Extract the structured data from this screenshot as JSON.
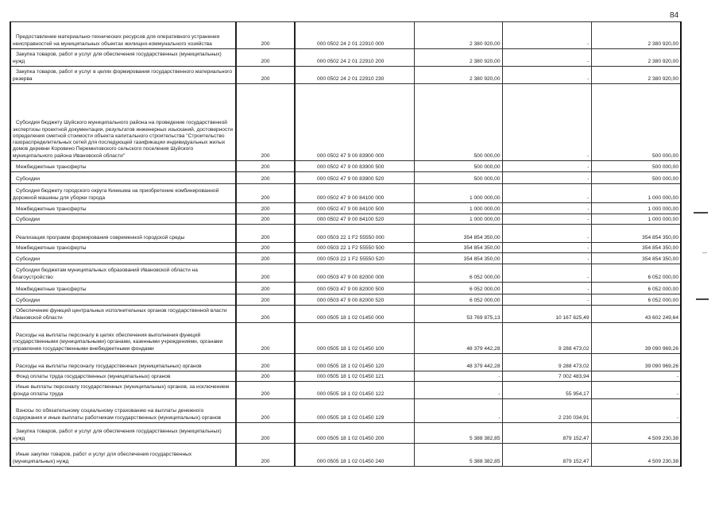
{
  "page_number": "84",
  "rows": [
    {
      "name": "Предоставление материально-технических ресурсов для оперативного устранения неисправностей на муниципальных объектах жилищно-коммунального хозяйства",
      "code": "200",
      "kbk": "000 0502 24 2 01 22910 000",
      "approved": "2 380 920,00",
      "executed": "-",
      "unexecuted": "2 380 920,00"
    },
    {
      "name": "Закупка товаров, работ и услуг для обеспечения государственных (муниципальных) нужд",
      "code": "200",
      "kbk": "000 0502 24 2 01 22910 200",
      "approved": "2 380 920,00",
      "executed": "-",
      "unexecuted": "2 380 920,00"
    },
    {
      "name": "Закупка товаров, работ и услуг в целях формирования государственного материального резерва",
      "code": "200",
      "kbk": "000 0502 24 2 01 22910 230",
      "approved": "2 380 920,00",
      "executed": "-",
      "unexecuted": "2 380 920,00"
    },
    {
      "name": "Субсидия бюджету Шуйского муниципального района на проведение государственной экспертизы проектной документации, результатов инженерных изысканий, достоверности определения сметной стоимости объекта капитального строительства \"Строительство газораспределительных сетей для последующей газификации индивидуальных жилых домов деревни Коровино Перемиловского сельского поселения Шуйского муниципального района Ивановской области\"",
      "code": "200",
      "kbk": "000 0502 47 9 00 83900 000",
      "approved": "500 000,00",
      "executed": "-",
      "unexecuted": "500 000,00"
    },
    {
      "name": "Межбюджетные трансферты",
      "code": "200",
      "kbk": "000 0502 47 9 00 83900 500",
      "approved": "500 000,00",
      "executed": "-",
      "unexecuted": "500 000,00"
    },
    {
      "name": "Субсидии",
      "code": "200",
      "kbk": "000 0502 47 9 00 83900 520",
      "approved": "500 000,00",
      "executed": "-",
      "unexecuted": "500 000,00"
    },
    {
      "name": "Субсидия бюджету городского округа Кинешма на приобретение комбинированной дорожной машины для уборки города",
      "code": "200",
      "kbk": "000 0502 47 9 00 84100 000",
      "approved": "1 000 000,00",
      "executed": "-",
      "unexecuted": "1 000 000,00"
    },
    {
      "name": "Межбюджетные трансферты",
      "code": "200",
      "kbk": "000 0502 47 9 00 84100 500",
      "approved": "1 000 000,00",
      "executed": "-",
      "unexecuted": "1 000 000,00"
    },
    {
      "name": "Субсидии",
      "code": "200",
      "kbk": "000 0502 47 9 00 84100 520",
      "approved": "1 000 000,00",
      "executed": "-",
      "unexecuted": "1 000 000,00"
    },
    {
      "name": "Реализация программ формирования современной городской среды",
      "code": "200",
      "kbk": "000 0503 22 1 F2 55550 000",
      "approved": "354 854 350,00",
      "executed": "-",
      "unexecuted": "354 854 350,00"
    },
    {
      "name": "Межбюджетные трансферты",
      "code": "200",
      "kbk": "000 0503 22 1 F2 55550 500",
      "approved": "354 854 350,00",
      "executed": "-",
      "unexecuted": "354 854 350,00"
    },
    {
      "name": "Субсидии",
      "code": "200",
      "kbk": "000 0503 22 1 F2 55550 520",
      "approved": "354 854 350,00",
      "executed": "-",
      "unexecuted": "354 854 350,00"
    },
    {
      "name": "Субсидии бюджетам муниципальных образований Ивановской области на благоустройство",
      "code": "200",
      "kbk": "000 0503 47 9 00 82000 000",
      "approved": "6 052 000,00",
      "executed": "-",
      "unexecuted": "6 052 000,00"
    },
    {
      "name": "Межбюджетные трансферты",
      "code": "200",
      "kbk": "000 0503 47 9 00 82000 500",
      "approved": "6 052 000,00",
      "executed": "-",
      "unexecuted": "6 052 000,00"
    },
    {
      "name": "Субсидии",
      "code": "200",
      "kbk": "000 0503 47 9 00 82000 520",
      "approved": "6 052 000,00",
      "executed": "-",
      "unexecuted": "6 052 000,00"
    },
    {
      "name": "Обеспечение функций центральных исполнительных органов государственной власти Ивановской области",
      "code": "200",
      "kbk": "000 0505 18 1 02 01450 000",
      "approved": "53 769 875,13",
      "executed": "10 167 625,49",
      "unexecuted": "43 602 249,64"
    },
    {
      "name": "Расходы на выплаты персоналу в целях обеспечения выполнения функций государственными (муниципальными) органами, казенными учреждениями, органами управления государственными внебюджетными фондами",
      "code": "200",
      "kbk": "000 0505 18 1 02 01450 100",
      "approved": "48 379 442,28",
      "executed": "9 288 473,02",
      "unexecuted": "39 090 969,26"
    },
    {
      "name": "Расходы на выплаты персоналу государственных (муниципальных) органов",
      "code": "200",
      "kbk": "000 0505 18 1 02 01450 120",
      "approved": "48 379 442,28",
      "executed": "9 288 473,02",
      "unexecuted": "39 090 969,26"
    },
    {
      "name": "Фонд оплаты труда государственных (муниципальных) органов",
      "code": "200",
      "kbk": "000 0505 18 1 02 01450 121",
      "approved": "-",
      "executed": "7 002 483,94",
      "unexecuted": "-"
    },
    {
      "name": "Иные выплаты персоналу государственных (муниципальных) органов, за исключением фонда оплаты труда",
      "code": "200",
      "kbk": "000 0505 18 1 02 01450 122",
      "approved": "-",
      "executed": "55 954,17",
      "unexecuted": "-"
    },
    {
      "name": "Взносы по обязательному социальному страхованию на выплаты денежного содержания и иные выплаты работникам государственных (муниципальных) органов",
      "code": "200",
      "kbk": "000 0505 18 1 02 01450 129",
      "approved": "-",
      "executed": "2 230 034,91",
      "unexecuted": "-"
    },
    {
      "name": "Закупка товаров, работ и услуг для обеспечения государственных (муниципальных) нужд",
      "code": "200",
      "kbk": "000 0505 18 1 02 01450 200",
      "approved": "5 388 382,85",
      "executed": "879 152,47",
      "unexecuted": "4 509 230,38"
    },
    {
      "name": "Иные закупки товаров, работ и услуг для обеспечения государственных (муниципальных) нужд",
      "code": "200",
      "kbk": "000 0505 18 1 02 01450 240",
      "approved": "5 388 382,85",
      "executed": "879 152,47",
      "unexecuted": "4 509 230,38"
    }
  ]
}
